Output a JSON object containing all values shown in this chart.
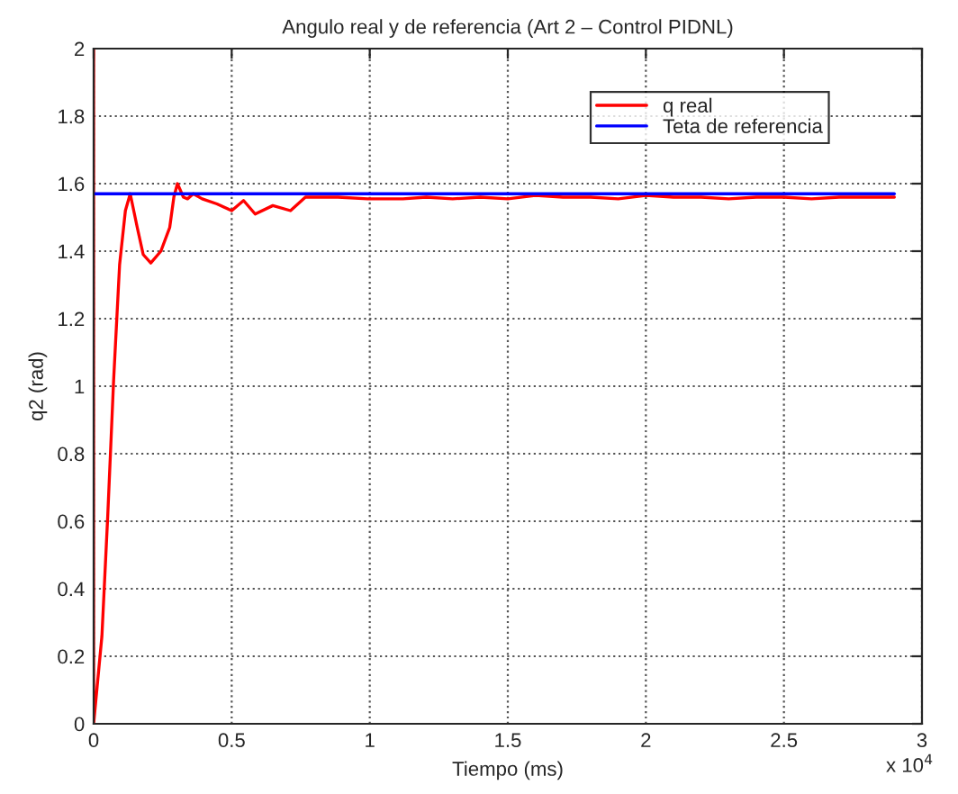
{
  "chart_data": {
    "type": "line",
    "title": "Angulo real y de referencia (Art 2 – Control PIDNL)",
    "xlabel": "Tiempo (ms)",
    "ylabel": "q2 (rad)",
    "series": [
      {
        "name": "q real",
        "color": "#ff0000",
        "x": [
          0,
          0,
          0.03,
          0.051,
          0.0725,
          0.094,
          0.115,
          0.1325,
          0.158,
          0.1795,
          0.207,
          0.2435,
          0.2755,
          0.2905,
          0.3035,
          0.325,
          0.34,
          0.361,
          0.393,
          0.4465,
          0.5,
          0.543,
          0.585,
          0.649,
          0.713,
          0.767,
          0.885,
          0.992,
          1.12,
          1.205,
          1.3,
          1.4,
          1.5,
          1.6,
          1.7,
          1.8,
          1.9,
          2.0,
          2.1,
          2.2,
          2.3,
          2.4,
          2.5,
          2.6,
          2.7,
          2.8,
          2.9
        ],
        "values": [
          2,
          0,
          0.26,
          0.615,
          1.02,
          1.36,
          1.52,
          1.57,
          1.47,
          1.39,
          1.365,
          1.4,
          1.47,
          1.56,
          1.6,
          1.56,
          1.555,
          1.57,
          1.555,
          1.54,
          1.52,
          1.55,
          1.51,
          1.535,
          1.52,
          1.56,
          1.56,
          1.555,
          1.555,
          1.56,
          1.555,
          1.56,
          1.555,
          1.565,
          1.56,
          1.56,
          1.555,
          1.565,
          1.56,
          1.56,
          1.555,
          1.56,
          1.56,
          1.555,
          1.56,
          1.56,
          1.56
        ]
      },
      {
        "name": "Teta de referencia",
        "color": "#0000ff",
        "x": [
          0,
          2.9
        ],
        "values": [
          1.57,
          1.57
        ]
      }
    ],
    "xlim": [
      0,
      3
    ],
    "xticks": [
      0,
      0.5,
      1,
      1.5,
      2,
      2.5,
      3
    ],
    "ylim": [
      0,
      2
    ],
    "yticks": [
      0,
      0.2,
      0.4,
      0.6,
      0.8,
      1,
      1.2,
      1.4,
      1.6,
      1.8,
      2
    ],
    "annotations": [
      "x 10$^{4}$"
    ],
    "grid": true,
    "legend": "top right",
    "line_style": "solid",
    "marker": "none"
  }
}
